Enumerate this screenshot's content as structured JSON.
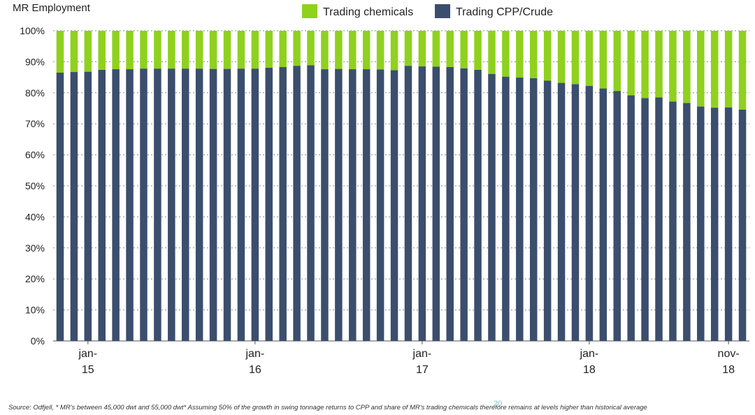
{
  "chart_data": {
    "type": "bar",
    "stacked": true,
    "title": "MR Employment",
    "xlabel": "",
    "ylabel": "",
    "ylim": [
      0,
      100
    ],
    "y_tick_format": "percent",
    "yticks": [
      "0%",
      "10%",
      "20%",
      "30%",
      "40%",
      "50%",
      "60%",
      "70%",
      "80%",
      "90%",
      "100%"
    ],
    "x_labels": [
      {
        "index": 2,
        "line1": "jan-",
        "line2": "15"
      },
      {
        "index": 14,
        "line1": "jan-",
        "line2": "16"
      },
      {
        "index": 26,
        "line1": "jan-",
        "line2": "17"
      },
      {
        "index": 38,
        "line1": "jan-",
        "line2": "18"
      },
      {
        "index": 48,
        "line1": "nov-",
        "line2": "18"
      }
    ],
    "grid": "horizontal-dotted",
    "legend_position": "top",
    "series": [
      {
        "name": "Trading chemicals",
        "color": "#8fd11e",
        "values": [
          13.5,
          13.3,
          13.2,
          12.6,
          12.4,
          12.4,
          12.2,
          12.2,
          12.2,
          12.2,
          12.2,
          12.3,
          12.3,
          12.2,
          12.2,
          11.9,
          11.7,
          11.3,
          11.1,
          12.4,
          12.3,
          12.4,
          12.4,
          12.5,
          12.7,
          11.3,
          11.5,
          11.6,
          11.7,
          12.1,
          12.6,
          13.9,
          14.8,
          15.1,
          15.3,
          16.1,
          16.8,
          17.2,
          17.8,
          18.6,
          19.4,
          20.8,
          21.7,
          21.5,
          22.8,
          23.3,
          24.4,
          24.8,
          24.7,
          25.4
        ]
      },
      {
        "name": "Trading CPP/Crude",
        "color": "#3b4e6d",
        "values": [
          86.5,
          86.7,
          86.8,
          87.4,
          87.6,
          87.6,
          87.8,
          87.8,
          87.8,
          87.8,
          87.8,
          87.7,
          87.7,
          87.8,
          87.8,
          88.1,
          88.3,
          88.7,
          88.9,
          87.6,
          87.7,
          87.6,
          87.6,
          87.5,
          87.3,
          88.7,
          88.5,
          88.4,
          88.3,
          87.9,
          87.4,
          86.1,
          85.2,
          84.9,
          84.7,
          83.9,
          83.2,
          82.8,
          82.2,
          81.4,
          80.6,
          79.2,
          78.3,
          78.5,
          77.2,
          76.7,
          75.6,
          75.2,
          75.3,
          74.6
        ]
      }
    ]
  },
  "footnote": "Source: Odfjell, * MR's between 45,000 dwt and 55,000 dwt* Assuming 50% of the growth in swing tonnage returns to CPP and share of MR's trading chemicals therefore remains at levels higher than historical average",
  "page_number": "20"
}
